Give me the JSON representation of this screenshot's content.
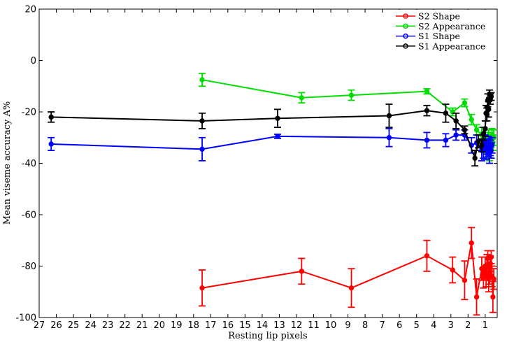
{
  "chart_data": {
    "type": "line",
    "title": "",
    "xlabel": "Resting lip pixels",
    "ylabel": "Mean viseme accuracy A%",
    "xlim": [
      27,
      0.3
    ],
    "ylim": [
      -100,
      20
    ],
    "x_ticks": [
      27,
      26,
      25,
      24,
      23,
      22,
      21,
      20,
      19,
      18,
      17,
      16,
      15,
      14,
      13,
      12,
      11,
      10,
      9,
      8,
      7,
      6,
      5,
      4,
      3,
      2,
      1
    ],
    "y_ticks": [
      20,
      0,
      -20,
      -40,
      -60,
      -80,
      -100
    ],
    "legend_position": "top-right",
    "series": [
      {
        "name": "S2 Shape",
        "color": "#ff0000",
        "x": [
          17.5,
          11.7,
          8.8,
          4.4,
          2.9,
          2.2,
          1.8,
          1.5,
          1.2,
          1.1,
          1.0,
          0.95,
          0.9,
          0.85,
          0.8,
          0.75,
          0.7,
          0.65,
          0.6,
          0.55,
          0.5
        ],
        "y": [
          -88.5,
          -82,
          -88.5,
          -76,
          -81.5,
          -85.5,
          -71,
          -92,
          -81,
          -84.5,
          -80,
          -84,
          -79.5,
          -77,
          -85,
          -83,
          -79,
          -76.5,
          -84,
          -92,
          -85
        ],
        "err": [
          7,
          5,
          7.5,
          6,
          5,
          7.5,
          6,
          7,
          4.5,
          4,
          3.5,
          4,
          4,
          3,
          5,
          4,
          3,
          2.5,
          4,
          6,
          4
        ]
      },
      {
        "name": "S2 Appearance",
        "color": "#00dd00",
        "x": [
          17.5,
          11.7,
          8.8,
          4.4,
          2.9,
          2.2,
          1.8,
          1.5,
          1.2,
          1.1,
          1.0,
          0.95,
          0.9,
          0.85,
          0.8,
          0.75,
          0.7,
          0.65,
          0.6,
          0.55,
          0.5
        ],
        "y": [
          -7.5,
          -14.5,
          -13.5,
          -12,
          -20,
          -16.5,
          -23,
          -27,
          -29,
          -31,
          -30.5,
          -33,
          -33.5,
          -31,
          -29.5,
          -35,
          -34,
          -31,
          -29,
          -32,
          -30
        ],
        "err": [
          2.5,
          2,
          2,
          1,
          1.5,
          1.5,
          2,
          2,
          3,
          3,
          2.5,
          3,
          3,
          3,
          2.5,
          4,
          4,
          3,
          2.5,
          3,
          3
        ]
      },
      {
        "name": "S1 Shape",
        "color": "#0000ff",
        "x": [
          26.3,
          17.5,
          13.1,
          6.6,
          4.4,
          3.3,
          2.7,
          2.2,
          1.8,
          1.5,
          1.2,
          1.1,
          1.0,
          0.95,
          0.9,
          0.85,
          0.8,
          0.75,
          0.7,
          0.65,
          0.6
        ],
        "y": [
          -32.5,
          -34.5,
          -29.5,
          -30,
          -31,
          -31,
          -29,
          -29,
          -33,
          -32,
          -35,
          -34.5,
          -32,
          -35,
          -33.5,
          -34,
          -32.5,
          -36,
          -34,
          -35,
          -33
        ],
        "err": [
          2.5,
          4.5,
          0.8,
          3.5,
          3,
          2.5,
          2,
          2,
          3,
          3,
          4,
          3.5,
          3,
          3.5,
          3,
          3.5,
          3,
          4,
          3,
          3,
          3
        ]
      },
      {
        "name": "S1 Appearance",
        "color": "#000000",
        "x": [
          26.3,
          17.5,
          13.1,
          6.6,
          4.4,
          3.3,
          2.7,
          2.2,
          1.6,
          1.4,
          1.2,
          1.1,
          1.0,
          0.95,
          0.9,
          0.85,
          0.8,
          0.75,
          0.7,
          0.65
        ],
        "y": [
          -22,
          -23.5,
          -22.5,
          -21.5,
          -19.5,
          -20.5,
          -23.5,
          -27,
          -38,
          -31.5,
          -33,
          -28.5,
          -26.5,
          -20.5,
          -21,
          -15.5,
          -19,
          -13,
          -15,
          -14
        ],
        "err": [
          2,
          3,
          3.5,
          4.5,
          2,
          3.5,
          3,
          1.5,
          3,
          2.5,
          2.5,
          2.5,
          3,
          3,
          2.5,
          2.5,
          3,
          1.5,
          2,
          1.5
        ]
      }
    ]
  }
}
